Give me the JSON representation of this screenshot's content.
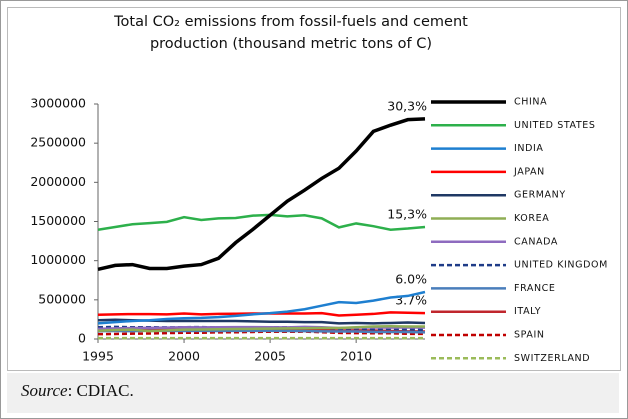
{
  "chart_data": {
    "type": "line",
    "title": "Total CO₂ emissions from fossil-fuels and cement production (thousand metric tons of C)",
    "x": [
      1995,
      1996,
      1997,
      1998,
      1999,
      2000,
      2001,
      2002,
      2003,
      2004,
      2005,
      2006,
      2007,
      2008,
      2009,
      2010,
      2011,
      2012,
      2013,
      2014
    ],
    "xlim": [
      1995,
      2014
    ],
    "xticks": [
      1995,
      2000,
      2005,
      2010
    ],
    "ylim": [
      0,
      3000000
    ],
    "yticks": [
      0,
      500000,
      1000000,
      1500000,
      2000000,
      2500000,
      3000000
    ],
    "series": [
      {
        "name": "CHINA",
        "color": "#000000",
        "dash": false,
        "end_label": "30,3%",
        "values": [
          890000,
          940000,
          950000,
          900000,
          900000,
          930000,
          950000,
          1030000,
          1230000,
          1400000,
          1580000,
          1760000,
          1900000,
          2050000,
          2180000,
          2400000,
          2650000,
          2730000,
          2800000,
          2810000
        ]
      },
      {
        "name": "UNITED STATES",
        "color": "#2db04b",
        "dash": false,
        "end_label": "15,3%",
        "values": [
          1395000,
          1430000,
          1465000,
          1480000,
          1495000,
          1555000,
          1520000,
          1540000,
          1545000,
          1575000,
          1585000,
          1565000,
          1580000,
          1540000,
          1425000,
          1475000,
          1440000,
          1395000,
          1410000,
          1430000
        ]
      },
      {
        "name": "INDIA",
        "color": "#1e7fd0",
        "dash": false,
        "end_label": "6.0%",
        "values": [
          200000,
          215000,
          230000,
          240000,
          255000,
          265000,
          270000,
          280000,
          295000,
          315000,
          330000,
          350000,
          380000,
          425000,
          470000,
          460000,
          490000,
          530000,
          550000,
          600000
        ]
      },
      {
        "name": "JAPAN",
        "color": "#ff0000",
        "dash": false,
        "end_label": "3.7%",
        "values": [
          310000,
          315000,
          318000,
          318000,
          315000,
          325000,
          315000,
          320000,
          322000,
          325000,
          325000,
          325000,
          325000,
          330000,
          300000,
          310000,
          320000,
          340000,
          335000,
          330000
        ]
      },
      {
        "name": "GERMANY",
        "color": "#1f3864",
        "dash": false,
        "values": [
          240000,
          245000,
          240000,
          235000,
          230000,
          230000,
          230000,
          230000,
          230000,
          225000,
          220000,
          220000,
          215000,
          215000,
          200000,
          205000,
          200000,
          205000,
          210000,
          205000
        ]
      },
      {
        "name": "KOREA",
        "color": "#8fae55",
        "dash": false,
        "values": [
          105000,
          115000,
          120000,
          100000,
          110000,
          120000,
          122000,
          125000,
          128000,
          130000,
          132000,
          135000,
          138000,
          140000,
          140000,
          150000,
          160000,
          162000,
          160000,
          160000
        ]
      },
      {
        "name": "CANADA",
        "color": "#8e6bbf",
        "dash": false,
        "values": [
          130000,
          135000,
          140000,
          142000,
          145000,
          150000,
          148000,
          150000,
          152000,
          152000,
          150000,
          148000,
          155000,
          150000,
          140000,
          145000,
          148000,
          145000,
          148000,
          145000
        ]
      },
      {
        "name": "UNITED KINGDOM",
        "color": "#1f3c88",
        "dash": true,
        "values": [
          150000,
          155000,
          150000,
          150000,
          148000,
          150000,
          152000,
          148000,
          150000,
          150000,
          150000,
          150000,
          148000,
          145000,
          130000,
          135000,
          125000,
          130000,
          125000,
          115000
        ]
      },
      {
        "name": "FRANCE",
        "color": "#4a7ebb",
        "dash": false,
        "values": [
          100000,
          102000,
          100000,
          105000,
          103000,
          102000,
          104000,
          102000,
          103000,
          103000,
          104000,
          102000,
          100000,
          98000,
          95000,
          95000,
          90000,
          90000,
          90000,
          85000
        ]
      },
      {
        "name": "ITALY",
        "color": "#c0262d",
        "dash": false,
        "values": [
          120000,
          118000,
          120000,
          122000,
          122000,
          122000,
          122000,
          124000,
          126000,
          128000,
          128000,
          126000,
          124000,
          118000,
          108000,
          110000,
          108000,
          102000,
          97000,
          95000
        ]
      },
      {
        "name": "SPAIN",
        "color": "#c00000",
        "dash": true,
        "values": [
          62000,
          64000,
          68000,
          70000,
          75000,
          80000,
          80000,
          85000,
          86000,
          90000,
          93000,
          92000,
          94000,
          87000,
          78000,
          75000,
          74000,
          73000,
          66000,
          66000
        ]
      },
      {
        "name": "SWITZERLAND",
        "color": "#9bbb59",
        "dash": true,
        "values": [
          11000,
          11000,
          11000,
          11000,
          11000,
          11000,
          11000,
          11000,
          11000,
          11000,
          11000,
          11000,
          11000,
          11000,
          11000,
          11000,
          11000,
          11000,
          11000,
          11000
        ]
      }
    ]
  },
  "source": {
    "label": "Source",
    "text": ": CDIAC."
  }
}
